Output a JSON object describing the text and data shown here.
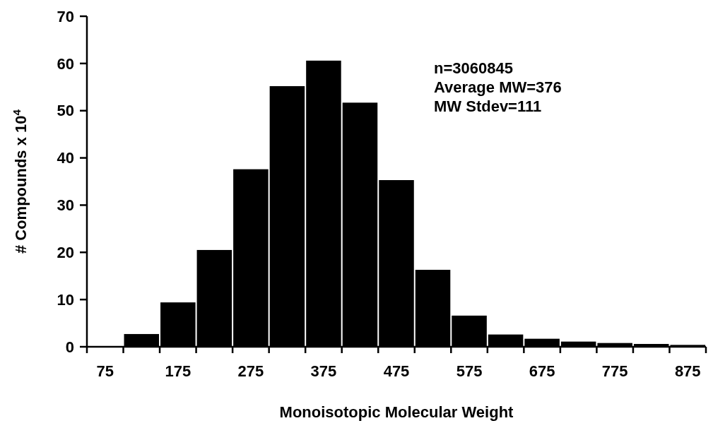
{
  "chart_data": {
    "type": "histogram",
    "xlabel": "Monoisotopic Molecular Weight",
    "ylabel": "# Compounds x 10$^{4}$",
    "bins": [
      50,
      100,
      150,
      200,
      250,
      300,
      350,
      400,
      450,
      500,
      550,
      600,
      650,
      700,
      750,
      800,
      850,
      900
    ],
    "values": [
      0,
      2.7,
      9.4,
      20.5,
      37.6,
      55.2,
      60.6,
      51.7,
      35.3,
      16.3,
      6.6,
      2.6,
      1.7,
      1.1,
      0.8,
      0.6,
      0.4
    ],
    "color": "#000000",
    "xlim": [
      50,
      900
    ],
    "xticks": [
      {
        "value": 50,
        "label": null
      },
      75,
      {
        "value": 100,
        "label": null
      },
      {
        "value": 150,
        "label": null
      },
      175,
      {
        "value": 200,
        "label": null
      },
      {
        "value": 250,
        "label": null
      },
      275,
      {
        "value": 300,
        "label": null
      },
      {
        "value": 350,
        "label": null
      },
      375,
      {
        "value": 400,
        "label": null
      },
      {
        "value": 450,
        "label": null
      },
      475,
      {
        "value": 500,
        "label": null
      },
      {
        "value": 550,
        "label": null
      },
      575,
      {
        "value": 600,
        "label": null
      },
      {
        "value": 650,
        "label": null
      },
      675,
      {
        "value": 700,
        "label": null
      },
      {
        "value": 750,
        "label": null
      },
      775,
      {
        "value": 800,
        "label": null
      },
      {
        "value": 850,
        "label": null
      },
      875,
      {
        "value": 900,
        "label": null
      }
    ],
    "ylim": [
      0,
      70
    ],
    "yticks": [
      0,
      10,
      20,
      30,
      40,
      50,
      60,
      70
    ],
    "annotations": [
      "n=3060845",
      "Average MW=376",
      "MW Stdev=111"
    ]
  }
}
